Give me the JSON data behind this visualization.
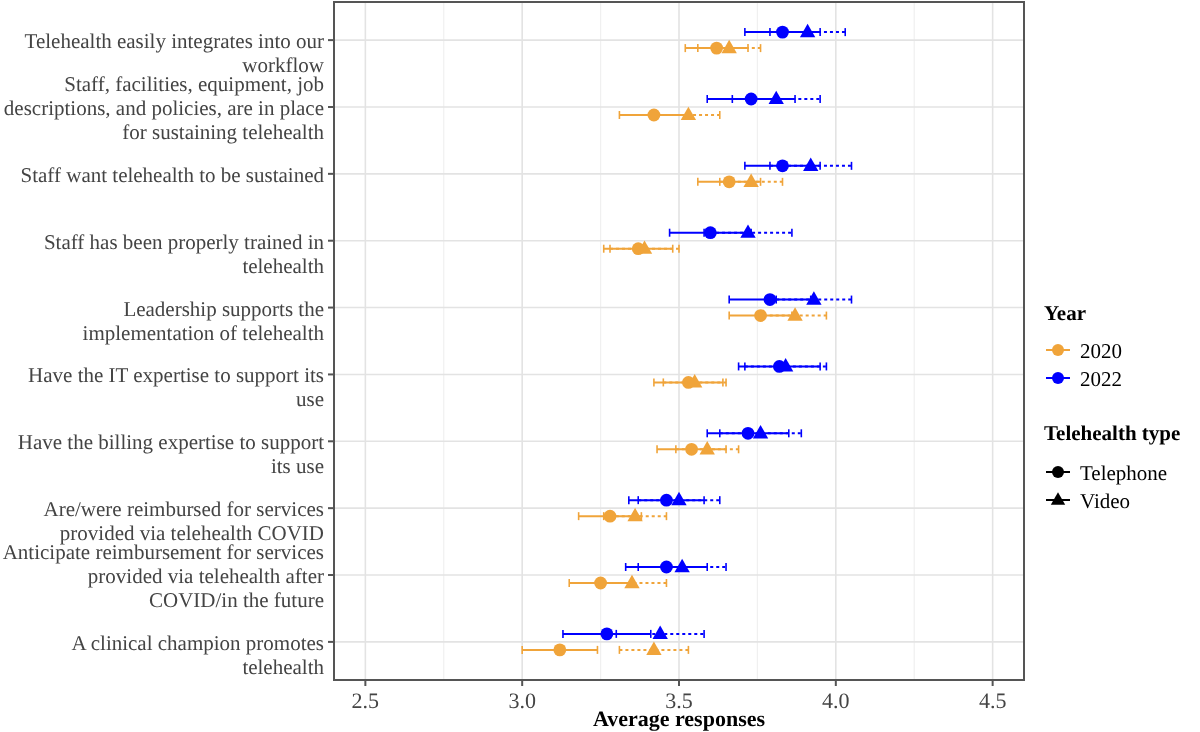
{
  "chart_data": {
    "type": "scatter",
    "orientation": "horizontal",
    "xlabel": "Average responses",
    "categories": [
      "Telehealth easily integrates into our workflow",
      "Staff, facilities, equipment, job descriptions, and policies, are in place for sustaining telehealth",
      "Staff want telehealth to be sustained",
      "Staff has been properly trained in telehealth",
      "Leadership supports the implementation of telehealth",
      "Have the IT expertise to support its use",
      "Have the billing expertise to support its use",
      "Are/were reimbursed for services provided via telehealth COVID",
      "Anticipate reimbursement for services provided via telehealth after COVID/in the future",
      "A clinical champion promotes telehealth"
    ],
    "series": [
      {
        "name": "2020",
        "color": "#f0a43a",
        "marker": "circle",
        "line_style": "solid",
        "values": [
          3.62,
          3.42,
          3.66,
          3.37,
          3.76,
          3.53,
          3.54,
          3.28,
          3.25,
          3.12
        ],
        "errors": [
          0.1,
          0.11,
          0.1,
          0.11,
          0.1,
          0.11,
          0.11,
          0.1,
          0.1,
          0.12
        ]
      },
      {
        "color": "#f0a43a",
        "marker": "triangle",
        "line_style": "dotted",
        "values": [
          3.66,
          3.53,
          3.73,
          3.39,
          3.87,
          3.55,
          3.59,
          3.36,
          3.35,
          3.42
        ],
        "errors": [
          0.1,
          0.1,
          0.1,
          0.11,
          0.1,
          0.1,
          0.1,
          0.1,
          0.11,
          0.11
        ]
      },
      {
        "name": "2022",
        "color": "#0000ff",
        "marker": "circle",
        "line_style": "solid",
        "values": [
          3.83,
          3.73,
          3.83,
          3.6,
          3.79,
          3.82,
          3.72,
          3.46,
          3.46,
          3.27
        ],
        "errors": [
          0.12,
          0.14,
          0.12,
          0.13,
          0.13,
          0.13,
          0.13,
          0.12,
          0.13,
          0.14
        ]
      },
      {
        "color": "#0000ff",
        "marker": "triangle",
        "line_style": "dotted",
        "values": [
          3.91,
          3.81,
          3.92,
          3.72,
          3.93,
          3.84,
          3.76,
          3.5,
          3.51,
          3.44
        ],
        "errors": [
          0.12,
          0.14,
          0.13,
          0.14,
          0.12,
          0.13,
          0.13,
          0.13,
          0.14,
          0.14
        ]
      }
    ],
    "xlim": [
      2.4,
      4.6
    ],
    "xticks": [
      2.5,
      {
        "value": 3,
        "label": "3.0"
      },
      3.5,
      {
        "value": 4,
        "label": "4.0"
      },
      4.5
    ],
    "grid": true,
    "legend": "right",
    "legend_title": [
      "Year",
      "Telehealth type"
    ],
    "annotations": [
      "Telephone",
      "Video"
    ]
  }
}
